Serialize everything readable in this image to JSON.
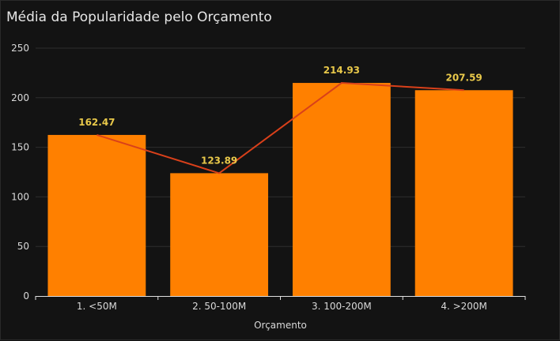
{
  "chart_data": {
    "type": "bar",
    "title": "Média da Popularidade pelo Orçamento",
    "xlabel": "Orçamento",
    "ylabel": "",
    "ylim": [
      0,
      250
    ],
    "yticks": [
      0,
      50,
      100,
      150,
      200,
      250
    ],
    "categories": [
      "1. <50M",
      "2. 50-100M",
      "3. 100-200M",
      "4. >200M"
    ],
    "values": [
      162.47,
      123.89,
      214.93,
      207.59
    ],
    "data_labels": [
      "162.47",
      "123.89",
      "214.93",
      "207.59"
    ],
    "overlay_line": true,
    "grid": true,
    "colors": {
      "bar": "#ff8000",
      "line": "#d9401a",
      "data_label": "#e8c84a",
      "background": "#131313",
      "grid": "#2e2e2e"
    }
  }
}
